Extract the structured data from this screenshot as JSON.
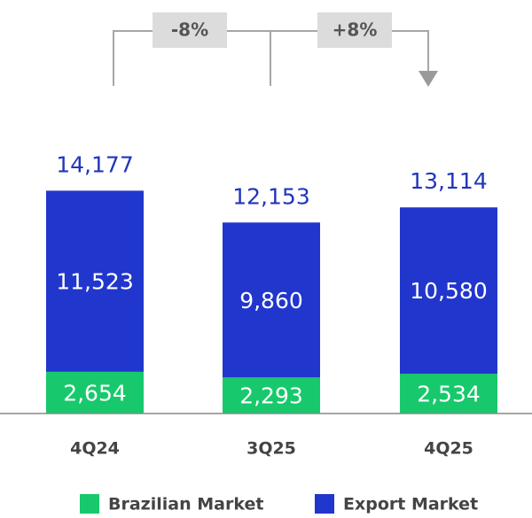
{
  "chart_data": {
    "type": "stacked_bar",
    "categories": [
      "4Q24",
      "3Q25",
      "4Q25"
    ],
    "series": [
      {
        "name": "Brazilian Market",
        "color": "#17c96c",
        "values": [
          2654,
          2293,
          2534
        ],
        "value_labels": [
          "2,654",
          "2,293",
          "2,534"
        ]
      },
      {
        "name": "Export Market",
        "color": "#2136cc",
        "values": [
          11523,
          9860,
          10580
        ],
        "value_labels": [
          "11,523",
          "9,860",
          "10,580"
        ]
      }
    ],
    "totals": [
      14177,
      12153,
      13114
    ],
    "total_labels": [
      "14,177",
      "12,153",
      "13,114"
    ],
    "annotations": [
      "-8%",
      "+8%"
    ],
    "ylim": [
      0,
      16000
    ]
  }
}
